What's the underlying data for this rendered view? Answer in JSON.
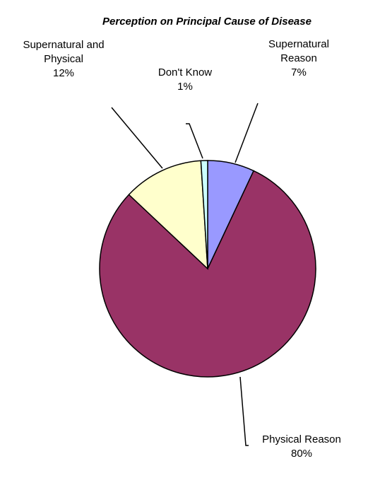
{
  "chart_data": {
    "type": "pie",
    "title": "Perception on Principal Cause of Disease",
    "start_angle_deg": 0,
    "direction": "clockwise",
    "slices": [
      {
        "name": "Supernatural Reason",
        "label_lines": [
          "Supernatural",
          "Reason"
        ],
        "percent_label": "7%",
        "value": 7,
        "color": "#9999ff"
      },
      {
        "name": "Physical Reason",
        "label_lines": [
          "Physical Reason"
        ],
        "percent_label": "80%",
        "value": 80,
        "color": "#993366"
      },
      {
        "name": "Supernatural and Physical",
        "label_lines": [
          "Supernatural and",
          "Physical"
        ],
        "percent_label": "12%",
        "value": 12,
        "color": "#ffffcc"
      },
      {
        "name": "Don't Know",
        "label_lines": [
          "Don't Know"
        ],
        "percent_label": "1%",
        "value": 1,
        "color": "#ccffff"
      }
    ]
  }
}
